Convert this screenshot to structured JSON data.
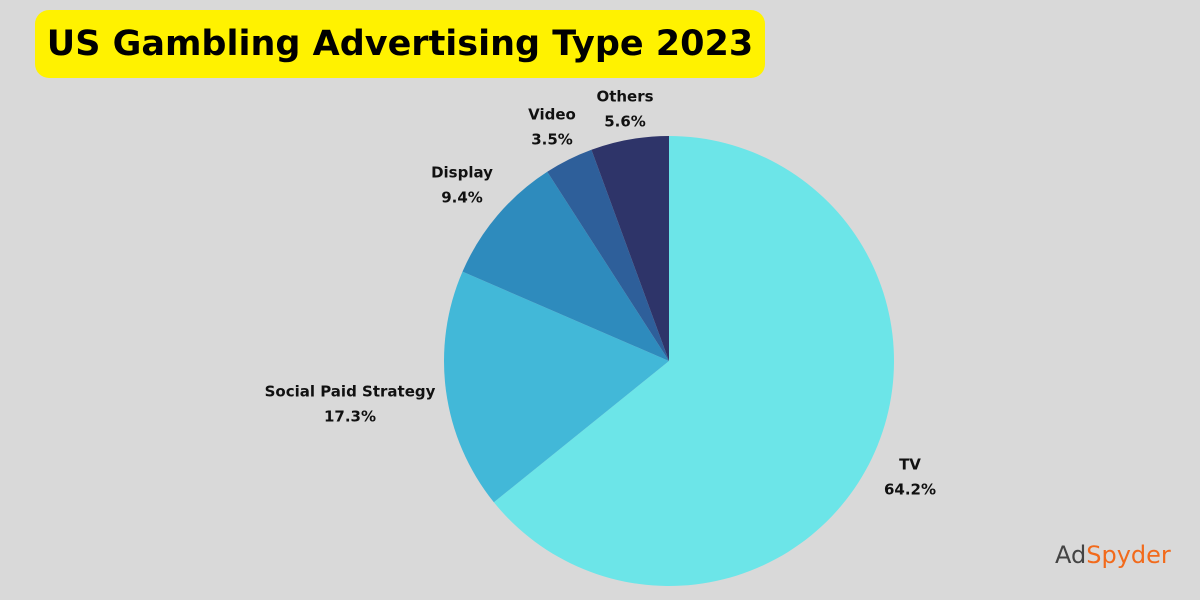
{
  "chart_data": {
    "type": "pie",
    "title": "US Gambling Advertising Type 2023",
    "categories": [
      "TV",
      "Social Paid Strategy",
      "Display",
      "Video",
      "Others"
    ],
    "values": [
      64.2,
      17.3,
      9.4,
      3.5,
      5.6
    ],
    "value_labels": [
      "64.2%",
      "17.3%",
      "9.4%",
      "3.5%",
      "5.6%"
    ],
    "colors": [
      "#6ce5e8",
      "#42b8d8",
      "#2e8bbd",
      "#2e5f9a",
      "#2e3469"
    ]
  },
  "brand": {
    "first": "Ad",
    "second": "Spyder"
  }
}
